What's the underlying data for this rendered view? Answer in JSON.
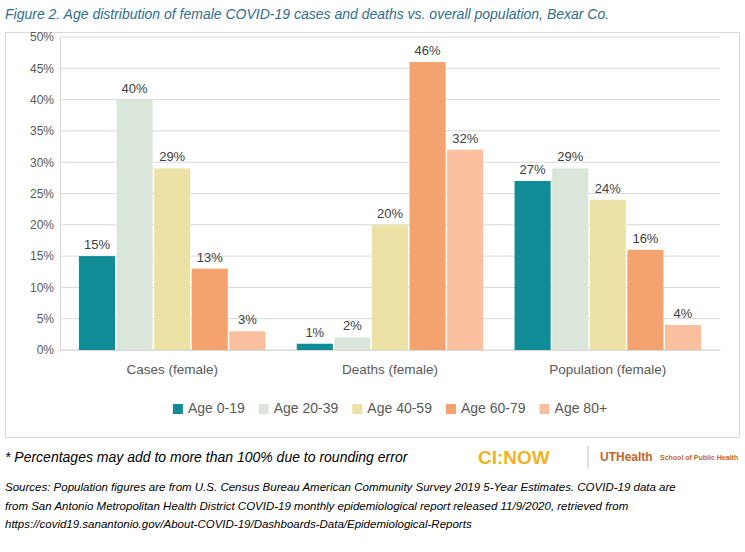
{
  "chart_data": {
    "type": "bar",
    "title": "Figure 2. Age distribution of female COVID-19 cases and deaths vs. overall population, Bexar Co.",
    "categories": [
      "Cases (female)",
      "Deaths (female)",
      "Population (female)"
    ],
    "series": [
      {
        "name": "Age 0-19",
        "color": "#0f8c96",
        "values": [
          15,
          1,
          27
        ],
        "value_labels": [
          "15%",
          "1%",
          "27%"
        ]
      },
      {
        "name": "Age 20-39",
        "color": "#dbe6db",
        "values": [
          40,
          2,
          29
        ],
        "value_labels": [
          "40%",
          "2%",
          "29%"
        ]
      },
      {
        "name": "Age 40-59",
        "color": "#ede2a6",
        "values": [
          29,
          20,
          24
        ],
        "value_labels": [
          "29%",
          "20%",
          "24%"
        ]
      },
      {
        "name": "Age 60-79",
        "color": "#f4a36f",
        "values": [
          13,
          46,
          16
        ],
        "value_labels": [
          "13%",
          "46%",
          "16%"
        ]
      },
      {
        "name": "Age 80+",
        "color": "#f9bf9f",
        "values": [
          3,
          32,
          4
        ],
        "value_labels": [
          "3%",
          "32%",
          "4%"
        ]
      }
    ],
    "ylim": [
      0,
      50
    ],
    "yticks": [
      {
        "value": 0,
        "label": "0%"
      },
      {
        "value": 5,
        "label": "5%"
      },
      {
        "value": 10,
        "label": "10%"
      },
      {
        "value": 15,
        "label": "15%"
      },
      {
        "value": 20,
        "label": "20%"
      },
      {
        "value": 25,
        "label": "25%"
      },
      {
        "value": 30,
        "label": "30%"
      },
      {
        "value": 35,
        "label": "35%"
      },
      {
        "value": 40,
        "label": "40%"
      },
      {
        "value": 45,
        "label": "45%"
      },
      {
        "value": 50,
        "label": "50%"
      }
    ],
    "grid": true,
    "legend": "bottom",
    "data_labels": true,
    "annotations": [
      "* Percentages may add to more than 100% due to rounding error"
    ],
    "source": [
      "Sources: Population figures are from U.S. Census Bureau American Community Survey 2019 5-Year Estimates. COVID-19 data are",
      "from San Antonio Metropolitan Health District COVID-19 monthly epidemiological report released 11/9/2020, retrieved from",
      "https://covid19.sanantonio.gov/About-COVID-19/Dashboards-Data/Epidemiological-Reports"
    ],
    "logo_texts": [
      "CI:NOW",
      "UTHealth",
      "School of Public Health"
    ]
  }
}
